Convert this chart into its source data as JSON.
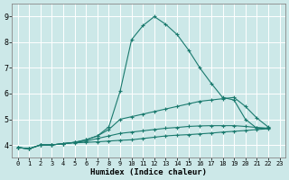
{
  "xlabel": "Humidex (Indice chaleur)",
  "bg_color": "#cce8e8",
  "line_color": "#1a7a6e",
  "grid_color": "#ffffff",
  "xlim": [
    -0.5,
    23.5
  ],
  "ylim": [
    3.5,
    9.5
  ],
  "xtick_labels": [
    "0",
    "1",
    "2",
    "3",
    "4",
    "5",
    "6",
    "7",
    "8",
    "9",
    "10",
    "11",
    "12",
    "13",
    "14",
    "15",
    "16",
    "17",
    "18",
    "19",
    "20",
    "21",
    "22",
    "23"
  ],
  "yticks": [
    4,
    5,
    6,
    7,
    8,
    9
  ],
  "series": [
    [
      3.9,
      3.85,
      4.0,
      4.0,
      4.05,
      4.1,
      4.2,
      4.35,
      4.7,
      6.1,
      8.1,
      8.65,
      9.0,
      8.7,
      8.3,
      7.7,
      7.0,
      6.4,
      5.85,
      5.75,
      5.0,
      4.65,
      4.65
    ],
    [
      3.9,
      3.85,
      4.0,
      4.0,
      4.05,
      4.1,
      4.2,
      4.35,
      4.6,
      5.0,
      5.1,
      5.2,
      5.3,
      5.4,
      5.5,
      5.6,
      5.7,
      5.75,
      5.8,
      5.85,
      5.5,
      5.05,
      4.7
    ],
    [
      3.9,
      3.85,
      4.0,
      4.0,
      4.05,
      4.1,
      4.15,
      4.25,
      4.35,
      4.45,
      4.5,
      4.55,
      4.6,
      4.65,
      4.68,
      4.72,
      4.74,
      4.75,
      4.75,
      4.75,
      4.72,
      4.68,
      4.65
    ],
    [
      3.9,
      3.85,
      4.0,
      4.0,
      4.05,
      4.08,
      4.1,
      4.12,
      4.15,
      4.18,
      4.2,
      4.25,
      4.3,
      4.35,
      4.38,
      4.4,
      4.43,
      4.46,
      4.5,
      4.53,
      4.56,
      4.6,
      4.63
    ]
  ]
}
